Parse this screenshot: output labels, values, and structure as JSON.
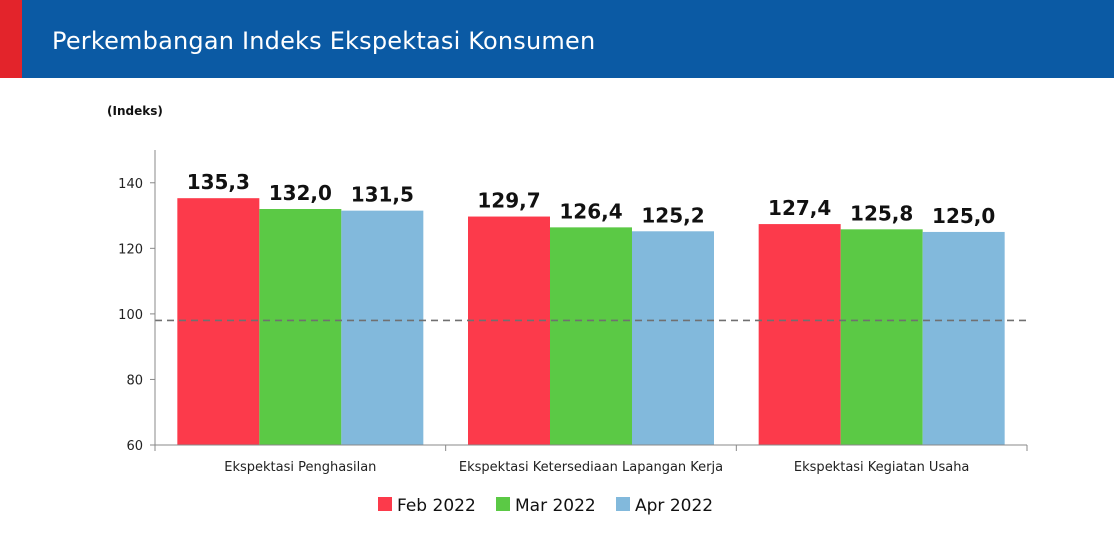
{
  "header": {
    "title": "Perkembangan Indeks Ekspektasi Konsumen"
  },
  "colors": {
    "header_bg": "#0b5aa4",
    "header_accent": "#e3242b"
  },
  "chart_data": {
    "type": "bar",
    "title": "Perkembangan Indeks Ekspektasi Konsumen",
    "ylabel": "(Indeks)",
    "ylim": [
      60,
      150
    ],
    "yticks": [
      60,
      80,
      100,
      120,
      140
    ],
    "reference_line": 98,
    "categories": [
      "Ekspektasi Penghasilan",
      "Ekspektasi Ketersediaan Lapangan Kerja",
      "Ekspektasi Kegiatan Usaha"
    ],
    "series": [
      {
        "name": "Feb 2022",
        "color": "#fc3a4b",
        "values": [
          135.3,
          129.7,
          127.4
        ],
        "labels": [
          "135,3",
          "129,7",
          "127,4"
        ]
      },
      {
        "name": "Mar 2022",
        "color": "#5bc945",
        "values": [
          132.0,
          126.4,
          125.8
        ],
        "labels": [
          "132,0",
          "126,4",
          "125,8"
        ]
      },
      {
        "name": "Apr 2022",
        "color": "#82b9dc",
        "values": [
          131.5,
          125.2,
          125.0
        ],
        "labels": [
          "131,5",
          "125,2",
          "125,0"
        ]
      }
    ],
    "legend": "bottom",
    "grid": false
  }
}
